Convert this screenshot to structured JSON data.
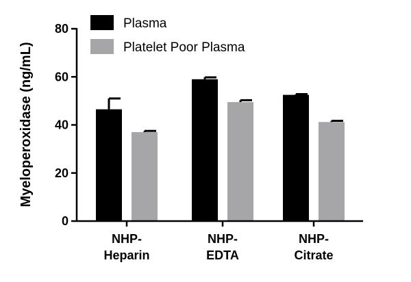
{
  "chart_data": {
    "type": "bar",
    "categories": [
      [
        "NHP-",
        "Heparin"
      ],
      [
        "NHP-",
        "EDTA"
      ],
      [
        "NHP-",
        "Citrate"
      ]
    ],
    "series": [
      {
        "name": "Plasma",
        "color": "#000000",
        "values": [
          46.5,
          59.0,
          52.5
        ],
        "errors": [
          4.5,
          0.8,
          0.3
        ]
      },
      {
        "name": "Platelet Poor Plasma",
        "color": "#a6a6a8",
        "values": [
          37.0,
          49.5,
          41.2
        ],
        "errors": [
          0.5,
          0.8,
          0.5
        ]
      }
    ],
    "xlabel": "",
    "ylabel": "Myeloperoxidase (ng/mL)",
    "ylim": [
      0,
      80
    ],
    "yticks": [
      0,
      20,
      40,
      60,
      80
    ],
    "grid": false,
    "legend_position": "top-left"
  }
}
